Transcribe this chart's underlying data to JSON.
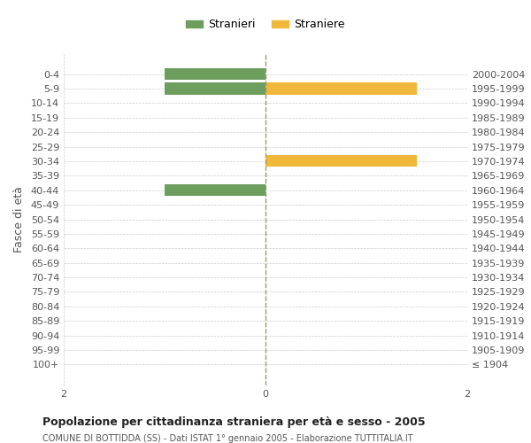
{
  "age_groups": [
    "100+",
    "95-99",
    "90-94",
    "85-89",
    "80-84",
    "75-79",
    "70-74",
    "65-69",
    "60-64",
    "55-59",
    "50-54",
    "45-49",
    "40-44",
    "35-39",
    "30-34",
    "25-29",
    "20-24",
    "15-19",
    "10-14",
    "5-9",
    "0-4"
  ],
  "birth_years": [
    "≤ 1904",
    "1905-1909",
    "1910-1914",
    "1915-1919",
    "1920-1924",
    "1925-1929",
    "1930-1934",
    "1935-1939",
    "1940-1944",
    "1945-1949",
    "1950-1954",
    "1955-1959",
    "1960-1964",
    "1965-1969",
    "1970-1974",
    "1975-1979",
    "1980-1984",
    "1985-1989",
    "1990-1994",
    "1995-1999",
    "2000-2004"
  ],
  "males": [
    0,
    0,
    0,
    0,
    0,
    0,
    0,
    0,
    0,
    0,
    0,
    0,
    1,
    0,
    0,
    0,
    0,
    0,
    0,
    1,
    1
  ],
  "females": [
    0,
    0,
    0,
    0,
    0,
    0,
    0,
    0,
    0,
    0,
    0,
    0,
    0,
    0,
    1.5,
    0,
    0,
    0,
    0,
    1.5,
    0
  ],
  "male_color": "#6d9e5e",
  "female_color": "#f0b83b",
  "xlim": [
    -2,
    2
  ],
  "title": "Popolazione per cittadinanza straniera per età e sesso - 2005",
  "subtitle": "COMUNE DI BOTTIDDA (SS) - Dati ISTAT 1° gennaio 2005 - Elaborazione TUTTITALIA.IT",
  "ylabel_left": "Fasce di età",
  "legend_male": "Stranieri",
  "legend_female": "Straniere",
  "bg_color": "#ffffff",
  "grid_color": "#cccccc",
  "bar_height": 0.8
}
